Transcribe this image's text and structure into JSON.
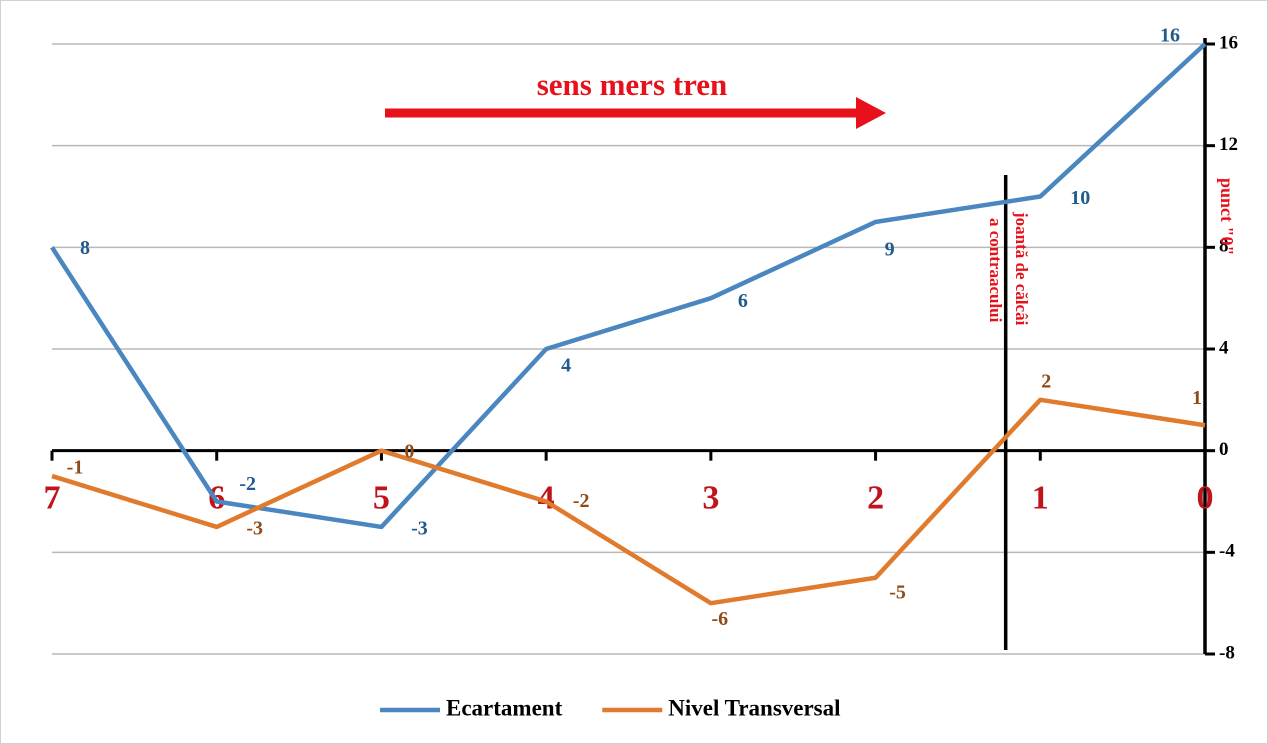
{
  "chart_data": {
    "type": "line",
    "categories": [
      "7",
      "6",
      "5",
      "4",
      "3",
      "2",
      "1",
      "0"
    ],
    "series": [
      {
        "name": "Ecartament",
        "color": "#4a86c0",
        "label_color": "#215a8c",
        "values": [
          8,
          -2,
          -3,
          4,
          6,
          9,
          10,
          16
        ]
      },
      {
        "name": "Nivel Transversal",
        "color": "#e07b2e",
        "label_color": "#8f4a16",
        "values": [
          -1,
          -3,
          0,
          -2,
          -6,
          -5,
          2,
          1
        ]
      }
    ],
    "ylim": [
      -8,
      16
    ],
    "yticks": [
      -8,
      -4,
      0,
      4,
      8,
      12,
      16
    ],
    "grid": true,
    "category_color": "#c0141c",
    "arrow_label": "sens mers tren",
    "joint_label": [
      "joantă de călcâi",
      "a contraacului"
    ],
    "zero_point_label": "punct \"0\"",
    "annotation_color": "#e8101a",
    "legend": "bottom"
  }
}
